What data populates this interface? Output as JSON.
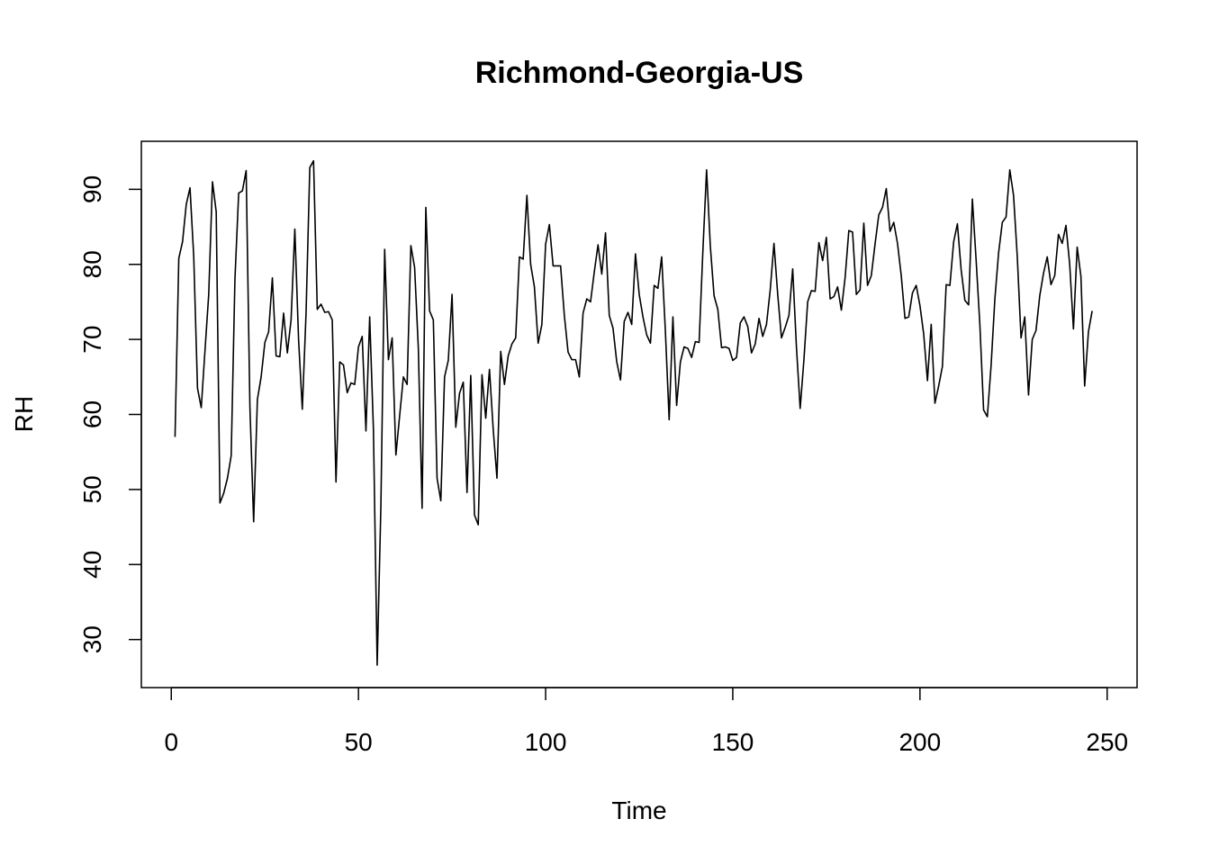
{
  "chart_data": {
    "type": "line",
    "title": "Richmond-Georgia-US",
    "xlabel": "Time",
    "ylabel": "RH",
    "xlim": [
      -8,
      258
    ],
    "ylim": [
      23.6,
      96.4
    ],
    "x_ticks": [
      0,
      50,
      100,
      150,
      200,
      250
    ],
    "y_ticks": [
      30,
      40,
      50,
      60,
      70,
      80,
      90
    ],
    "grid": false,
    "legend": "none",
    "line_color": "#000000",
    "series": [
      {
        "x_start": 1,
        "values": [
          57.0,
          80.8,
          83.0,
          88.0,
          90.2,
          81.0,
          63.5,
          60.9,
          68.5,
          76.0,
          91.0,
          87.0,
          48.2,
          49.5,
          51.5,
          54.5,
          78.0,
          89.5,
          89.8,
          92.5,
          61.0,
          45.7,
          62.0,
          65.0,
          69.6,
          71.0,
          78.2,
          67.8,
          67.7,
          73.5,
          68.2,
          72.6,
          84.7,
          70.0,
          60.7,
          73.5,
          92.9,
          93.8,
          74.0,
          74.7,
          73.6,
          73.7,
          72.6,
          51.0,
          67.0,
          66.6,
          62.9,
          64.2,
          64.0,
          69.0,
          70.4,
          57.8,
          73.0,
          58.0,
          26.6,
          48.0,
          82.0,
          67.3,
          70.2,
          54.6,
          59.8,
          65.0,
          64.0,
          82.5,
          79.6,
          68.8,
          47.5,
          87.6,
          73.8,
          72.6,
          51.5,
          48.5,
          65.0,
          67.2,
          76.0,
          58.3,
          62.8,
          64.3,
          49.6,
          65.2,
          46.6,
          45.3,
          65.3,
          59.5,
          66.0,
          58.0,
          51.5,
          68.4,
          64.0,
          67.8,
          69.4,
          70.2,
          81.0,
          80.7,
          89.2,
          80.0,
          77.0,
          69.5,
          72.0,
          82.7,
          85.3,
          79.8,
          79.8,
          79.8,
          73.2,
          68.3,
          67.3,
          67.3,
          65.0,
          73.5,
          75.4,
          75.0,
          79.0,
          82.6,
          78.7,
          84.2,
          73.2,
          71.5,
          67.0,
          64.6,
          72.4,
          73.6,
          72.0,
          81.4,
          76.0,
          73.0,
          70.6,
          69.5,
          77.2,
          76.8,
          81.0,
          71.0,
          59.3,
          73.0,
          61.2,
          67.0,
          69.0,
          68.8,
          67.6,
          69.7,
          69.6,
          81.7,
          92.6,
          82.4,
          75.8,
          74.0,
          68.9,
          69.0,
          68.8,
          67.2,
          67.6,
          72.2,
          73.0,
          71.7,
          68.2,
          69.4,
          72.8,
          70.4,
          72.0,
          76.6,
          82.8,
          76.0,
          70.2,
          71.6,
          73.2,
          79.4,
          69.0,
          60.8,
          67.3,
          75.0,
          76.5,
          76.4,
          82.9,
          80.5,
          83.6,
          75.4,
          75.7,
          77.0,
          73.9,
          78.2,
          84.5,
          84.3,
          76.0,
          76.6,
          85.5,
          77.2,
          78.5,
          82.7,
          86.6,
          87.6,
          90.1,
          84.4,
          85.6,
          82.8,
          78.5,
          72.8,
          73.0,
          76.2,
          77.2,
          74.5,
          70.7,
          64.5,
          72.0,
          61.5,
          63.8,
          66.4,
          77.3,
          77.2,
          83.0,
          85.4,
          79.3,
          75.2,
          74.6,
          88.7,
          80.6,
          72.0,
          60.6,
          59.7,
          66.5,
          75.3,
          81.5,
          85.6,
          86.3,
          92.6,
          89.2,
          81.0,
          70.2,
          73.0,
          62.6,
          70.0,
          71.2,
          75.8,
          78.8,
          81.0,
          77.3,
          78.5,
          84.0,
          82.8,
          85.2,
          80.0,
          71.4,
          82.3,
          78.4,
          63.8,
          71.0,
          73.8
        ]
      }
    ]
  }
}
